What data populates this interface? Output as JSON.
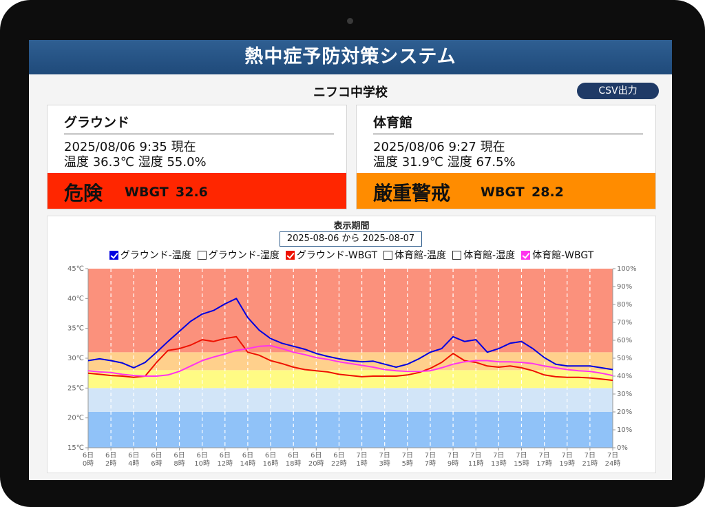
{
  "header": {
    "title": "熱中症予防対策システム",
    "school": "ニフコ中学校",
    "csv_button": "CSV出力"
  },
  "panels": [
    {
      "name": "グラウンド",
      "timestamp": "2025/08/06 9:35 現在",
      "conditions": "温度 36.3℃ 湿度 55.0%",
      "level": "危険",
      "wbgt_label": "WBGT",
      "wbgt": 32.6,
      "color": "#ff2600"
    },
    {
      "name": "体育館",
      "timestamp": "2025/08/06 9:27 現在",
      "conditions": "温度 31.9℃ 湿度 67.5%",
      "level": "厳重警戒",
      "wbgt_label": "WBGT",
      "wbgt": 28.2,
      "color": "#ff8c00"
    }
  ],
  "chart_data": {
    "type": "line",
    "title": "表示期間",
    "period": "2025-08-06 から 2025-08-07",
    "categories": [
      "6日\n0時",
      null,
      "6日\n2時",
      null,
      "6日\n4時",
      null,
      "6日\n6時",
      null,
      "6日\n8時",
      null,
      "6日\n10時",
      null,
      "6日\n12時",
      null,
      "6日\n14時",
      null,
      "6日\n16時",
      null,
      "6日\n18時",
      null,
      "6日\n20時",
      null,
      "6日\n22時",
      null,
      "7日\n1時",
      null,
      "7日\n3時",
      null,
      "7日\n5時",
      null,
      "7日\n7時",
      null,
      "7日\n9時",
      null,
      "7日\n11時",
      null,
      "7日\n13時",
      null,
      "7日\n15時",
      null,
      "7日\n17時",
      null,
      "7日\n19時",
      null,
      "7日\n21時",
      null,
      "7日\n24時"
    ],
    "series": [
      {
        "name": "グラウンド-温度",
        "color": "#0000e0",
        "checked": true,
        "values": [
          29.6,
          29.9,
          29.6,
          29.2,
          28.4,
          29.3,
          31.0,
          32.8,
          34.5,
          36.2,
          37.4,
          38.0,
          39.1,
          40.0,
          36.8,
          34.7,
          33.3,
          32.5,
          32.0,
          31.5,
          30.8,
          30.3,
          29.9,
          29.6,
          29.4,
          29.5,
          29.0,
          28.5,
          29.0,
          29.9,
          31.0,
          31.6,
          33.6,
          32.8,
          33.1,
          31.0,
          31.6,
          32.5,
          32.8,
          31.6,
          30.1,
          29.0,
          28.7,
          28.7,
          28.7,
          28.4,
          28.1
        ]
      },
      {
        "name": "グラウンド-湿度",
        "checked": false
      },
      {
        "name": "グラウンド-WBGT",
        "color": "#ee1100",
        "checked": true,
        "values": [
          27.5,
          27.3,
          27.1,
          27.0,
          26.8,
          27.0,
          29.3,
          31.3,
          31.6,
          32.2,
          33.1,
          32.8,
          33.3,
          33.6,
          31.0,
          30.5,
          29.6,
          29.1,
          28.5,
          28.1,
          27.9,
          27.7,
          27.3,
          27.1,
          26.9,
          27.0,
          27.0,
          27.0,
          27.2,
          27.6,
          28.3,
          29.3,
          30.8,
          29.6,
          29.3,
          28.7,
          28.5,
          28.7,
          28.4,
          27.9,
          27.2,
          26.9,
          26.8,
          26.8,
          26.7,
          26.5,
          26.3
        ]
      },
      {
        "name": "体育館-温度",
        "checked": false
      },
      {
        "name": "体育館-湿度",
        "checked": false
      },
      {
        "name": "体育館-WBGT",
        "color": "#ff33ee",
        "checked": true,
        "values": [
          27.9,
          27.7,
          27.6,
          27.3,
          27.1,
          27.0,
          27.0,
          27.2,
          27.8,
          28.7,
          29.6,
          30.2,
          30.7,
          31.3,
          31.6,
          32.0,
          32.1,
          31.6,
          31.0,
          30.6,
          30.1,
          29.8,
          29.4,
          29.1,
          28.8,
          28.5,
          28.1,
          27.9,
          27.8,
          27.8,
          27.9,
          28.4,
          29.0,
          29.4,
          29.6,
          29.6,
          29.4,
          29.4,
          29.3,
          29.1,
          28.7,
          28.4,
          28.1,
          27.9,
          27.8,
          27.5,
          27.1
        ]
      }
    ],
    "ylim": [
      15,
      45
    ],
    "yticks": [
      {
        "value": 15,
        "label": "15℃"
      },
      {
        "value": 20,
        "label": "20℃"
      },
      {
        "value": 25,
        "label": "25℃"
      },
      {
        "value": 30,
        "label": "30℃"
      },
      {
        "value": 35,
        "label": "35℃"
      },
      {
        "value": 40,
        "label": "40℃"
      },
      {
        "value": 45,
        "label": "45℃"
      }
    ],
    "y2lim": [
      0,
      100
    ],
    "y2ticks": [
      {
        "value": 0,
        "label": "0%"
      },
      {
        "value": 10,
        "label": "10%"
      },
      {
        "value": 20,
        "label": "20%"
      },
      {
        "value": 30,
        "label": "30%"
      },
      {
        "value": 40,
        "label": "40%"
      },
      {
        "value": 50,
        "label": "50%"
      },
      {
        "value": 60,
        "label": "60%"
      },
      {
        "value": 70,
        "label": "70%"
      },
      {
        "value": 80,
        "label": "80%"
      },
      {
        "value": 90,
        "label": "90%"
      },
      {
        "value": 100,
        "label": "100%"
      }
    ],
    "bands": [
      {
        "from": 15,
        "to": 21,
        "color": "#90c2f8"
      },
      {
        "from": 21,
        "to": 25,
        "color": "#d2e5f8"
      },
      {
        "from": 25,
        "to": 28,
        "color": "#fffb84"
      },
      {
        "from": 28,
        "to": 31,
        "color": "#ffd08c"
      },
      {
        "from": 31,
        "to": 45,
        "color": "#fb917c"
      }
    ],
    "x_grid": true
  }
}
